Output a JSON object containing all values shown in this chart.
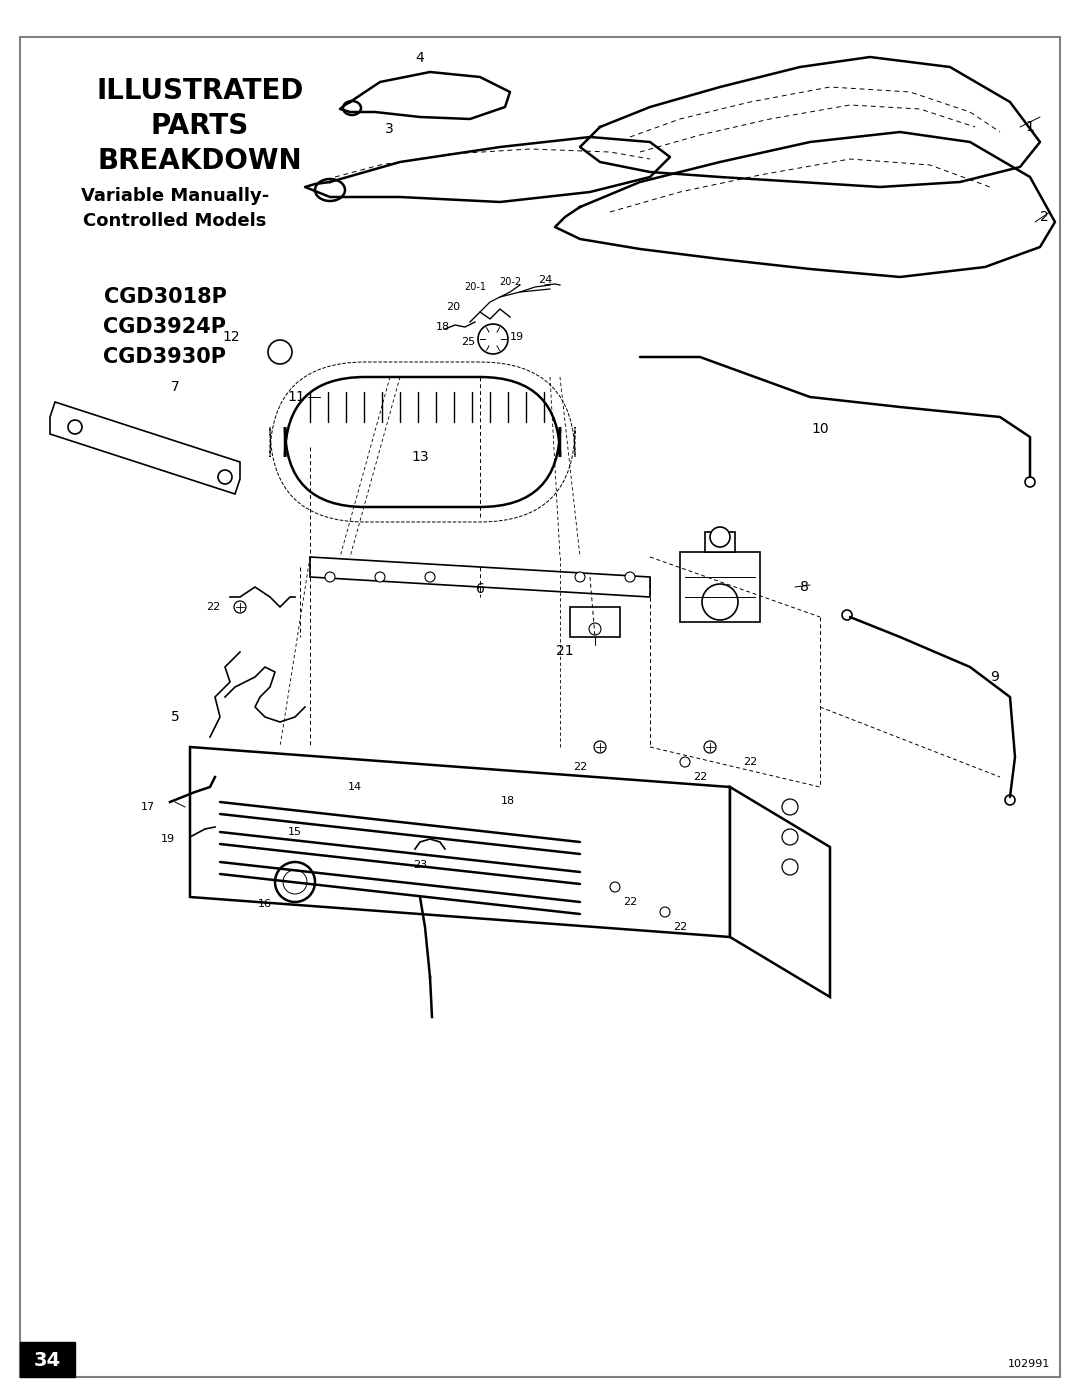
{
  "page_width": 10.8,
  "page_height": 13.97,
  "background_color": "#ffffff",
  "border_color": "#808080",
  "title_lines": [
    "ILLUSTRATED",
    "PARTS",
    "BREAKDOWN"
  ],
  "subtitle_lines": [
    "Variable Manually-",
    "Controlled Models"
  ],
  "model_lines": [
    "CGD3018P",
    "CGD3924P",
    "CGD3930P"
  ],
  "page_number": "34",
  "doc_number": "102991",
  "title_fontsize": 20,
  "subtitle_fontsize": 13,
  "model_fontsize": 15,
  "part_label_fontsize": 10
}
